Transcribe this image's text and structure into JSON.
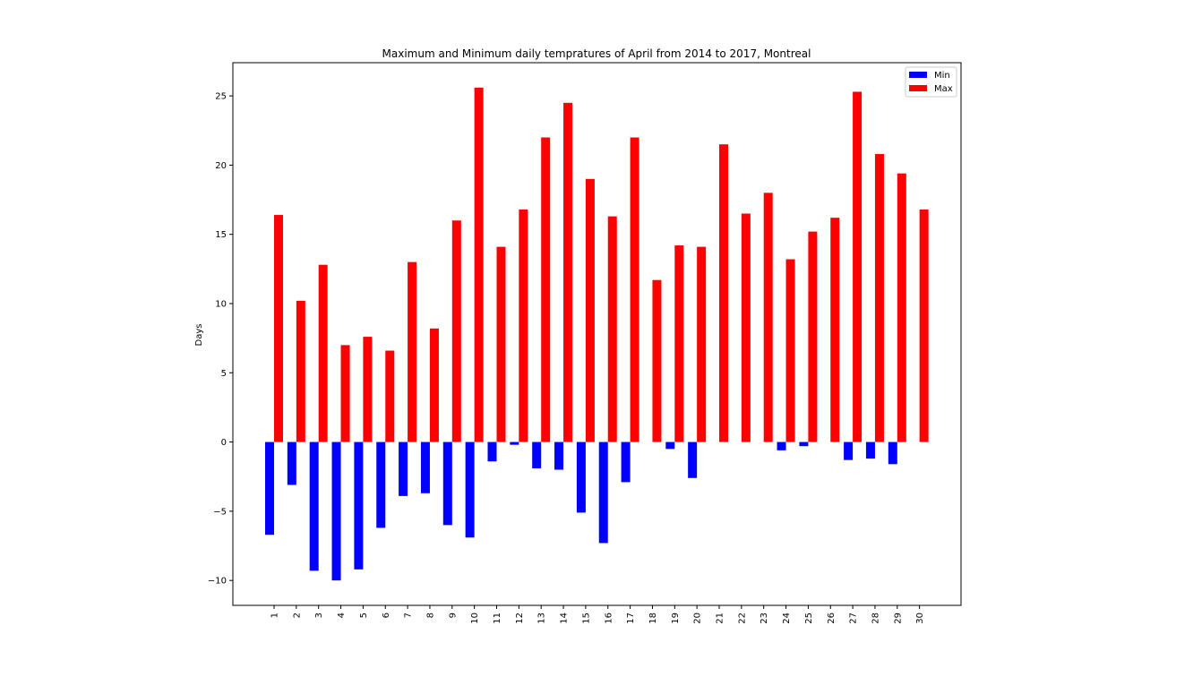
{
  "chart_data": {
    "type": "bar",
    "title": "Maximum and Minimum daily tempratures of April from 2014 to 2017, Montreal",
    "xlabel": "",
    "ylabel": "Days",
    "categories": [
      "1",
      "2",
      "3",
      "4",
      "5",
      "6",
      "7",
      "8",
      "9",
      "10",
      "11",
      "12",
      "13",
      "14",
      "15",
      "16",
      "17",
      "18",
      "19",
      "20",
      "21",
      "22",
      "23",
      "24",
      "25",
      "26",
      "27",
      "28",
      "29",
      "30"
    ],
    "series": [
      {
        "name": "Min",
        "color": "#0000ff",
        "values": [
          -6.7,
          -3.1,
          -9.3,
          -10.0,
          -9.2,
          -6.2,
          -3.9,
          -3.7,
          -6.0,
          -6.9,
          -1.4,
          -0.2,
          -1.9,
          -2.0,
          -5.1,
          -7.3,
          -2.9,
          0,
          -0.5,
          -2.6,
          0,
          0,
          0,
          -0.6,
          -0.3,
          0,
          -1.3,
          -1.2,
          -1.6,
          0
        ]
      },
      {
        "name": "Max",
        "color": "#ff0000",
        "values": [
          16.4,
          10.2,
          12.8,
          7.0,
          7.6,
          6.6,
          13.0,
          8.2,
          16.0,
          25.6,
          14.1,
          16.8,
          22.0,
          24.5,
          19.0,
          16.3,
          22.0,
          11.7,
          14.2,
          14.1,
          21.5,
          16.5,
          18.0,
          13.2,
          15.2,
          16.2,
          25.3,
          20.8,
          19.4,
          16.8
        ]
      }
    ],
    "ylim": [
      -11.8,
      27.4
    ],
    "yticks": [
      -10,
      -5,
      0,
      5,
      10,
      15,
      20,
      25
    ],
    "ytick_labels": [
      "−10",
      "−5",
      "0",
      "5",
      "10",
      "15",
      "20",
      "25"
    ],
    "legend_position": "upper right",
    "grid": false
  }
}
